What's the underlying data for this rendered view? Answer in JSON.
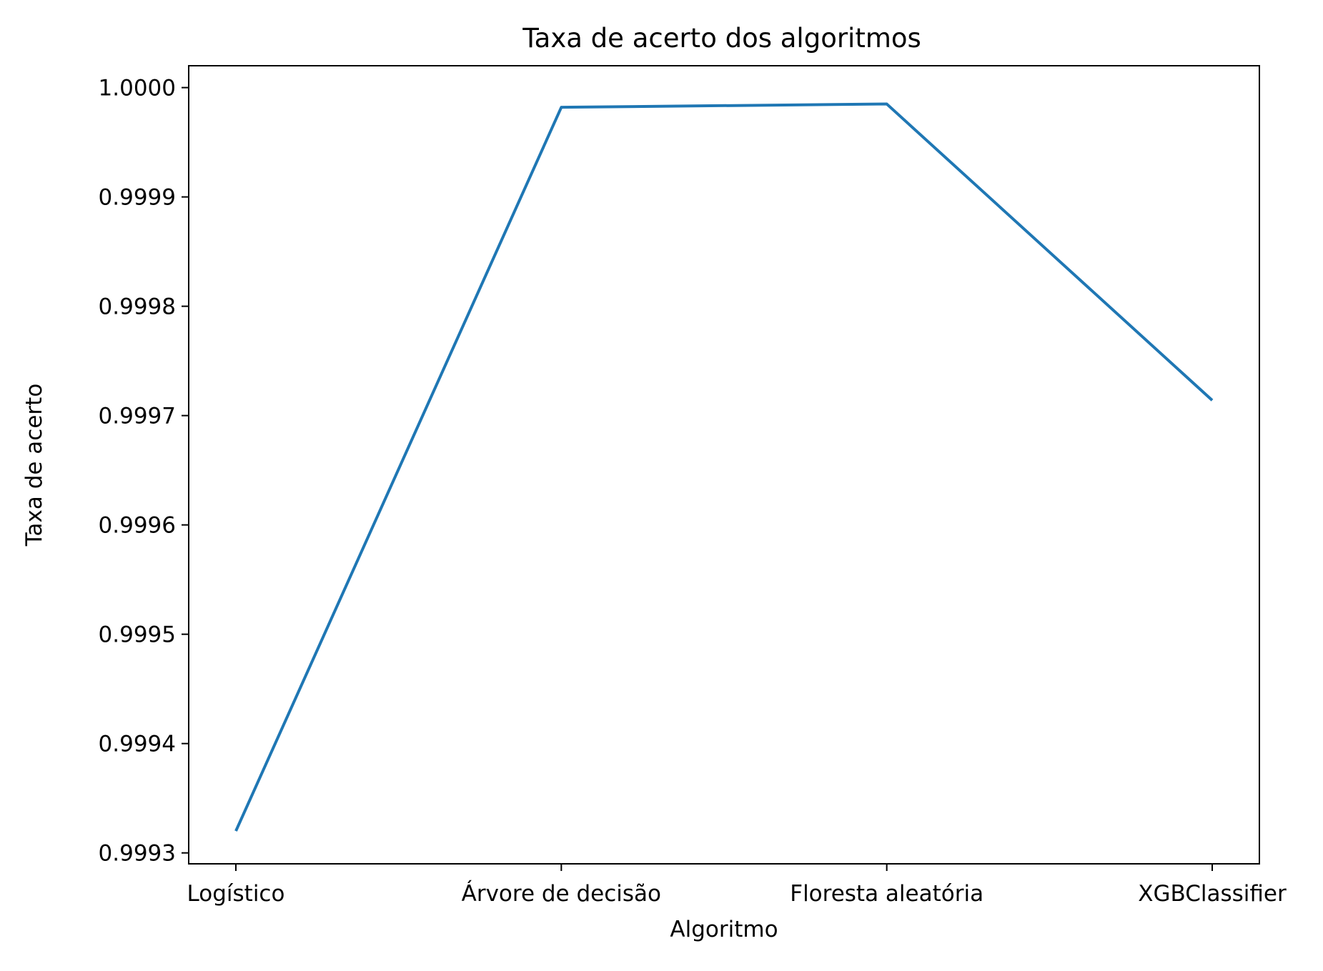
{
  "chart_data": {
    "type": "line",
    "title": "Taxa de acerto dos algoritmos",
    "xlabel": "Algoritmo",
    "ylabel": "Taxa de acerto",
    "categories": [
      "Logístico",
      "Árvore de decisão",
      "Floresta aleatória",
      "XGBClassifier"
    ],
    "series": [
      {
        "values": [
          0.99932,
          0.999982,
          0.999985,
          0.999714
        ],
        "color": "#1f77b4"
      }
    ],
    "ylim": [
      0.99929,
      1.00002
    ],
    "yticks": [
      0.9993,
      0.9994,
      0.9995,
      0.9996,
      0.9997,
      0.9998,
      0.9999,
      1.0
    ],
    "ytick_labels": [
      "0.9993",
      "0.9994",
      "0.9995",
      "0.9996",
      "0.9997",
      "0.9998",
      "0.9999",
      "1.0000"
    ],
    "grid": false,
    "legend": "none"
  }
}
